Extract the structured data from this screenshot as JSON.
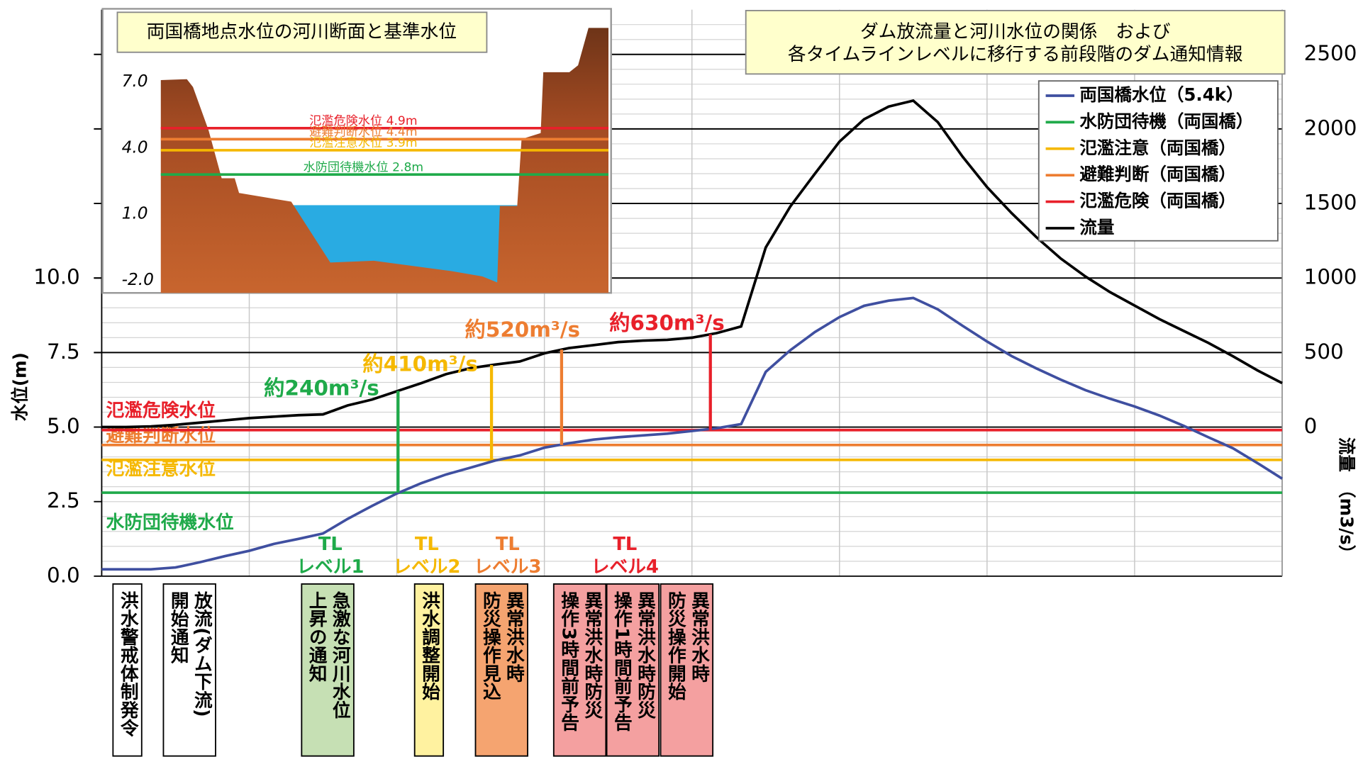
{
  "chart_data": {
    "type": "line",
    "title_lines": [
      "ダム放流量と河川水位の関係　および",
      "各タイムラインレベルに移行する前段階のダム通知情報"
    ],
    "ylabel": "水位(m)",
    "y2label": "流量　（m3/s）",
    "categories": [
      null,
      null,
      null,
      null,
      null,
      null,
      null,
      null,
      null,
      null,
      null,
      null,
      null,
      null,
      null,
      null,
      null,
      null,
      null,
      null,
      null,
      null,
      null,
      null,
      null,
      null,
      null,
      null,
      null,
      null,
      null,
      null,
      null,
      null,
      null,
      null,
      null,
      null,
      null,
      null,
      null,
      null,
      null,
      null,
      null,
      null,
      null,
      null,
      null
    ],
    "ylim": [
      0,
      19
    ],
    "yticks": [
      {
        "value": 0,
        "label": "0.0"
      },
      2.5,
      {
        "value": 5,
        "label": "5.0"
      },
      7.5,
      {
        "value": 10,
        "label": "10.0"
      }
    ],
    "y2lim": [
      -1000,
      2800
    ],
    "y2ticks": [
      0,
      500,
      1000,
      1500,
      2000,
      2500
    ],
    "grid": true,
    "legend": "top-right",
    "series": [
      {
        "name": "両国橋水位（5.4k）",
        "color": "#3f4fa0",
        "values": [
          0.23,
          0.23,
          0.23,
          0.29,
          0.47,
          0.67,
          0.85,
          1.08,
          1.25,
          1.43,
          1.92,
          2.36,
          2.77,
          3.12,
          3.41,
          3.64,
          3.88,
          4.05,
          4.31,
          4.46,
          4.58,
          4.66,
          4.72,
          4.78,
          4.87,
          4.96,
          5.1,
          6.85,
          7.58,
          8.19,
          8.69,
          9.07,
          9.24,
          9.33,
          8.95,
          8.4,
          7.87,
          7.38,
          6.97,
          6.59,
          6.24,
          5.95,
          5.69,
          5.39,
          5.04,
          4.66,
          4.29,
          3.79,
          3.27
        ]
      },
      {
        "name": "水防団待機（両国橋）",
        "color": "#1faa4a",
        "value": 2.8,
        "label": "水防団待機水位"
      },
      {
        "name": "氾濫注意（両国橋）",
        "color": "#f5b800",
        "value": 3.9,
        "label": "氾濫注意水位"
      },
      {
        "name": "避難判断（両国橋）",
        "color": "#ed7d31",
        "value": 4.4,
        "label": "避難判断水位"
      },
      {
        "name": "氾濫危険（両国橋）",
        "color": "#e8202a",
        "value": 4.9,
        "label": "氾濫危険水位"
      },
      {
        "name": "流量",
        "color": "#000000",
        "axis": "y2",
        "values": [
          0,
          0,
          5,
          15,
          30,
          45,
          60,
          70,
          80,
          85,
          145,
          185,
          240,
          295,
          355,
          395,
          420,
          440,
          495,
          530,
          550,
          570,
          580,
          585,
          600,
          630,
          675,
          1205,
          1480,
          1700,
          1915,
          2065,
          2150,
          2190,
          2045,
          1815,
          1610,
          1435,
          1275,
          1130,
          1010,
          905,
          815,
          725,
          645,
          565,
          475,
          380,
          295
        ]
      }
    ],
    "annotations": [
      {
        "text": "約240m³/s",
        "color": "#1faa4a"
      },
      {
        "text": "約410m³/s",
        "color": "#f5b800"
      },
      {
        "text": "約520m³/s",
        "color": "#ed7d31"
      },
      {
        "text": "約630m³/s",
        "color": "#e8202a"
      }
    ],
    "timeline_levels": [
      {
        "tl": "TL",
        "level": "レベル1",
        "color": "#1faa4a"
      },
      {
        "tl": "TL",
        "level": "レベル2",
        "color": "#f5b800"
      },
      {
        "tl": "TL",
        "level": "レベル3",
        "color": "#ed7d31"
      },
      {
        "tl": "TL",
        "level": "レベル4",
        "color": "#e8202a"
      }
    ],
    "notices": [
      {
        "lines": [
          "洪水警戒体制発令"
        ],
        "color": "#ffffff"
      },
      {
        "lines": [
          "放流(ダム下流)",
          "開始通知"
        ],
        "color": "#ffffff"
      },
      {
        "lines": [
          "急激な河川水位",
          "上昇の通知"
        ],
        "color": "#c6e0b4"
      },
      {
        "lines": [
          "洪水調整開始"
        ],
        "color": "#fff2a0"
      },
      {
        "lines": [
          "異常洪水時",
          "防災操作見込"
        ],
        "color": "#f5a470"
      },
      {
        "lines": [
          "異常洪水時防災",
          "操作3時間前予告"
        ],
        "color": "#f4a0a0"
      },
      {
        "lines": [
          "異常洪水時防災",
          "操作1時間前予告"
        ],
        "color": "#f4a0a0"
      },
      {
        "lines": [
          "異常洪水時",
          "防災操作開始"
        ],
        "color": "#f4a0a0"
      }
    ],
    "inset": {
      "title": "両国橋地点水位の河川断面と基準水位",
      "yticks": [
        {
          "value": 7,
          "label": "7.0"
        },
        {
          "value": 4,
          "label": "4.0"
        },
        {
          "value": 1,
          "label": "1.0"
        },
        {
          "value": -2,
          "label": "-2.0"
        }
      ],
      "levels": [
        {
          "label": "氾濫危険水位  4.9m",
          "value": 4.9,
          "color": "#e8202a"
        },
        {
          "label": "避難判断水位  4.4m",
          "value": 4.4,
          "color": "#ed7d31"
        },
        {
          "label": "氾濫注意水位  3.9m",
          "value": 3.9,
          "color": "#f5b800"
        },
        {
          "label": "水防団待機水位  2.8m",
          "value": 2.8,
          "color": "#1faa4a"
        }
      ]
    }
  }
}
